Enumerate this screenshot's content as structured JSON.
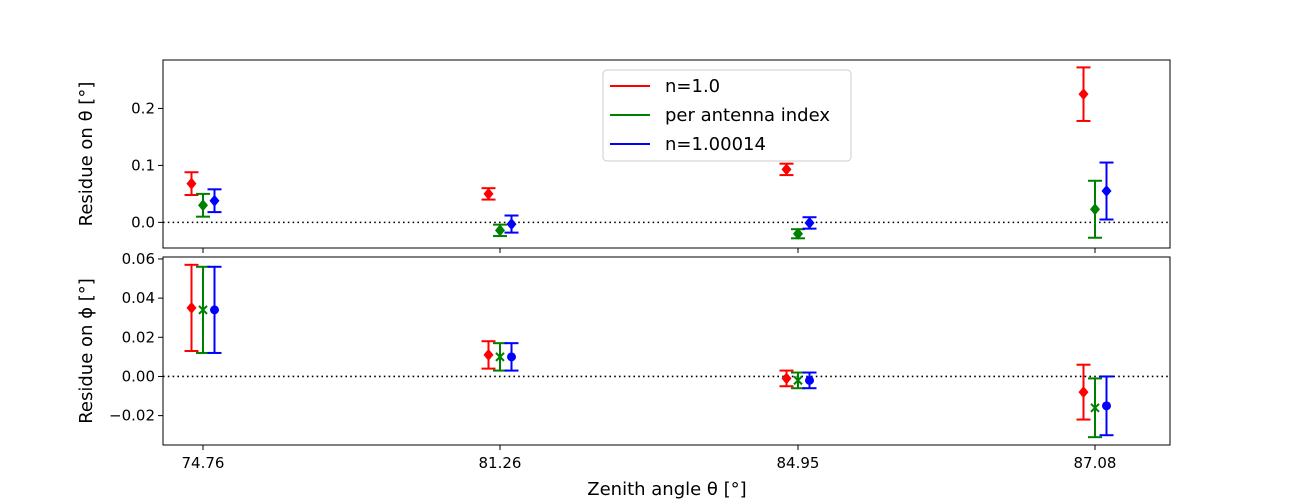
{
  "chart_data": {
    "type": "scatter",
    "xlabel": "Zenith angle θ [°]",
    "categories": [
      "74.76",
      "81.26",
      "84.95",
      "87.08"
    ],
    "series": [
      {
        "name": "n=1.0",
        "color": "#ff0000",
        "offset": -1
      },
      {
        "name": "per antenna index",
        "color": "#008000",
        "offset": 0
      },
      {
        "name": "n=1.00014",
        "color": "#0000ff",
        "offset": 1
      }
    ],
    "legend": {
      "placement": "upper-center",
      "labels": [
        "n=1.0",
        "per antenna index",
        "n=1.00014"
      ]
    },
    "panels": [
      {
        "id": "theta",
        "ylabel": "Residue on θ [°]",
        "ylim": [
          -0.045,
          0.285
        ],
        "yticks": [
          0.0,
          0.1,
          0.2
        ],
        "ytick_labels": [
          "0.0",
          "0.1",
          "0.2"
        ],
        "reference_line": 0.0,
        "markers": [
          "diamond",
          "diamond",
          "diamond"
        ],
        "values": [
          [
            0.068,
            0.05,
            0.093,
            0.225
          ],
          [
            0.03,
            -0.014,
            -0.02,
            0.023
          ],
          [
            0.038,
            -0.003,
            -0.001,
            0.055
          ]
        ],
        "errors": [
          [
            0.02,
            0.01,
            0.01,
            0.047
          ],
          [
            0.02,
            0.01,
            0.008,
            0.05
          ],
          [
            0.02,
            0.015,
            0.01,
            0.05
          ]
        ]
      },
      {
        "id": "phi",
        "ylabel": "Residue on ϕ [°]",
        "ylim": [
          -0.035,
          0.061
        ],
        "yticks": [
          -0.02,
          0.0,
          0.02,
          0.04,
          0.06
        ],
        "ytick_labels": [
          "−0.02",
          "0.00",
          "0.02",
          "0.04",
          "0.06"
        ],
        "reference_line": 0.0,
        "markers": [
          "diamond",
          "cross",
          "circle"
        ],
        "values": [
          [
            0.035,
            0.011,
            -0.001,
            -0.008
          ],
          [
            0.034,
            0.01,
            -0.002,
            -0.016
          ],
          [
            0.034,
            0.01,
            -0.002,
            -0.015
          ]
        ],
        "errors": [
          [
            0.022,
            0.007,
            0.004,
            0.014
          ],
          [
            0.022,
            0.007,
            0.004,
            0.015
          ],
          [
            0.022,
            0.007,
            0.004,
            0.015
          ]
        ]
      }
    ]
  }
}
